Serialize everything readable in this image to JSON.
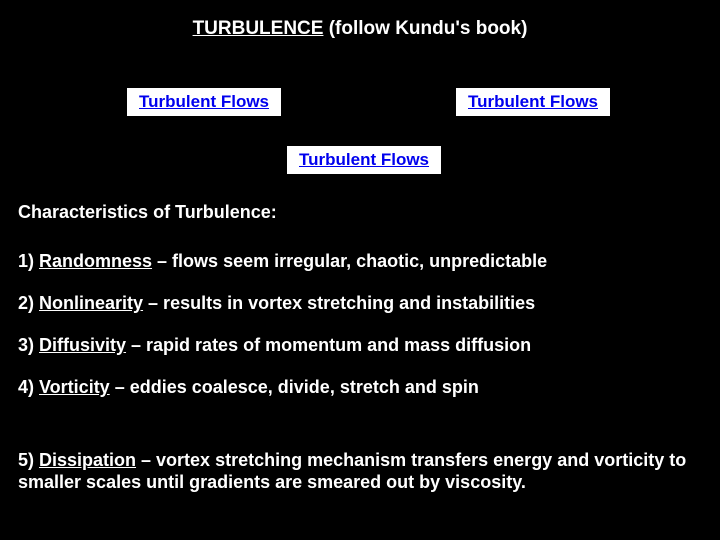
{
  "title_underlined": "TURBULENCE",
  "title_rest": " (follow Kundu's book)",
  "links": {
    "link1": "Turbulent Flows",
    "link2": "Turbulent Flows",
    "link3": "Turbulent Flows"
  },
  "subhead": "Characteristics of Turbulence:",
  "items": {
    "n1": "1) ",
    "kw1": "Randomness",
    "desc1": " – flows seem irregular, chaotic, unpredictable",
    "n2": "2) ",
    "kw2": "Nonlinearity",
    "desc2": " – results in vortex stretching and instabilities",
    "n3": "3) ",
    "kw3": "Diffusivity",
    "desc3": " – rapid rates of momentum and mass diffusion",
    "n4": "4) ",
    "kw4": "Vorticity",
    "desc4": " – eddies coalesce, divide, stretch and spin",
    "n5": "5) ",
    "kw5": "Dissipation",
    "desc5": " – vortex stretching mechanism transfers energy and vorticity to smaller scales until gradients are smeared out by viscosity."
  },
  "colors": {
    "background": "#000000",
    "text": "#ffffff",
    "link_bg": "#ffffff",
    "link_text": "#0000ee"
  }
}
